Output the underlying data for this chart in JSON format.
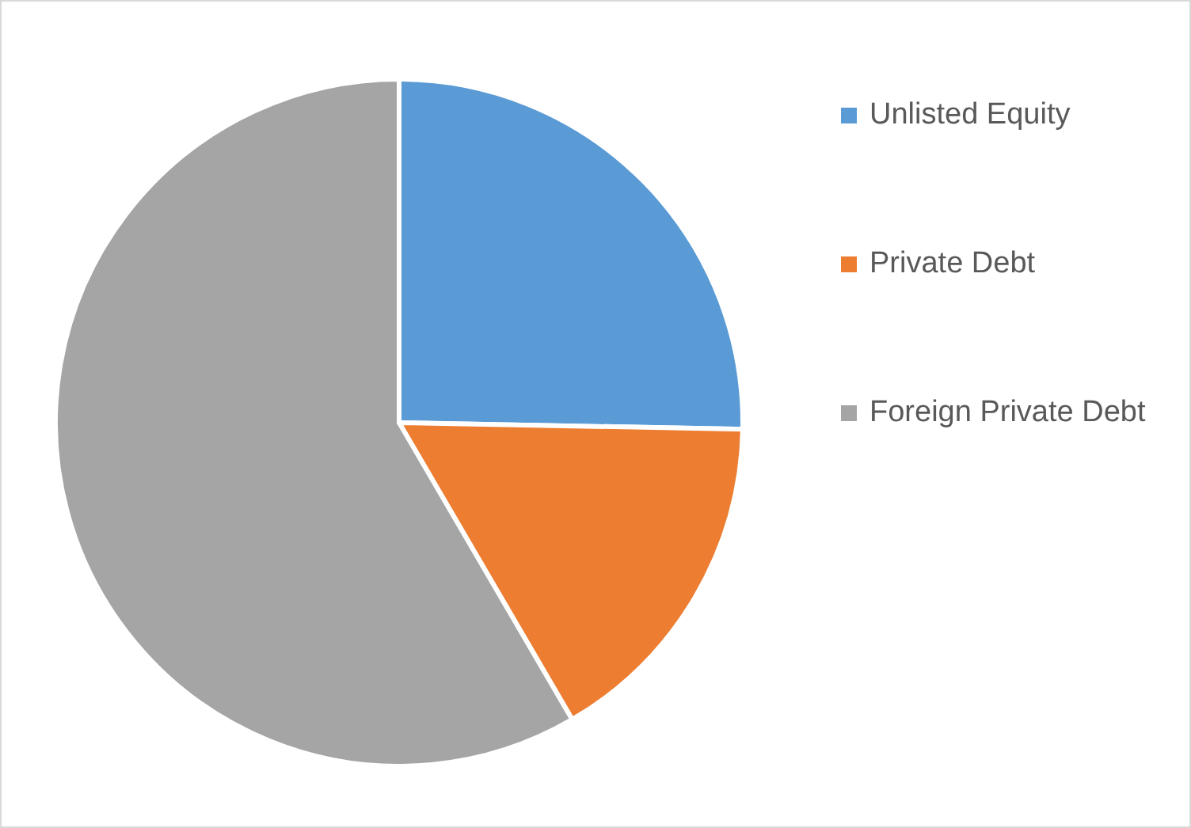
{
  "chart_data": {
    "type": "pie",
    "categories": [
      "Unlisted Equity",
      "Private Debt",
      "Foreign Private Debt"
    ],
    "values": [
      25.3,
      16.3,
      58.4
    ],
    "colors": [
      "#5b9bd5",
      "#ed7d31",
      "#a5a5a5"
    ],
    "legend": "right"
  }
}
